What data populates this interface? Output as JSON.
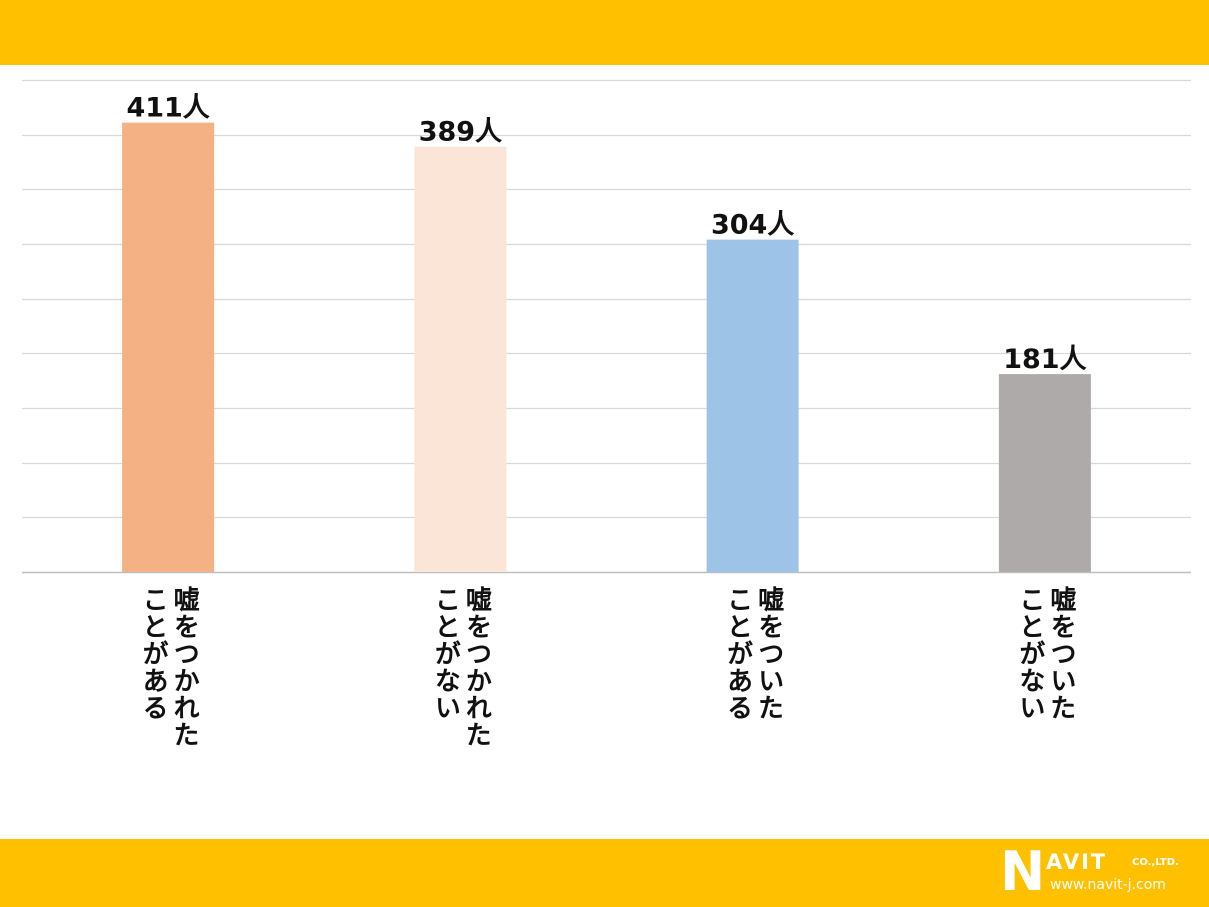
{
  "colors": {
    "band": "#FFC000",
    "grid": "#D9D9D9",
    "axis": "#BFBFBF",
    "bars": [
      "#F4B183",
      "#FBE5D6",
      "#9DC3E6",
      "#AEAAAA"
    ]
  },
  "chart_data": {
    "type": "bar",
    "categories": [
      "嘘をつかれたことがある",
      "嘘をつかれたことがない",
      "嘘をついたことがある",
      "嘘をついたことがない"
    ],
    "category_lines": [
      [
        "嘘をつかれた",
        "ことがある"
      ],
      [
        "嘘をつかれた",
        "ことがない"
      ],
      [
        "嘘をついた",
        "ことがある"
      ],
      [
        "嘘をついた",
        "ことがない"
      ]
    ],
    "values": [
      411,
      389,
      304,
      181
    ],
    "data_labels": [
      "411人",
      "389人",
      "304人",
      "181人"
    ],
    "ylim": [
      0,
      450
    ],
    "grid_step": 50,
    "grid": true,
    "legend": "none"
  },
  "logo": {
    "letter": "N",
    "word": "AVIT",
    "suffix": "CO.,LTD.",
    "url": "www.navit-j.com"
  }
}
